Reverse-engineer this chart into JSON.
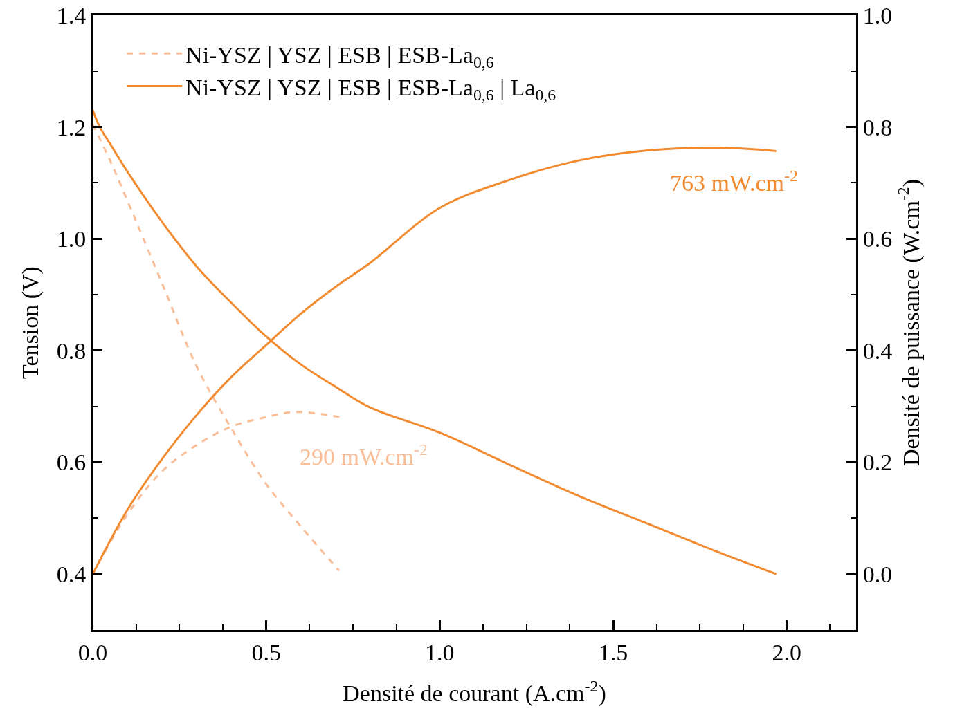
{
  "chart_data": {
    "type": "line",
    "xlabel": "Densité de courant (A.cm$^{-2}$)",
    "ylabel": "Tension (V)",
    "y2label": "Densité de puissance (W.cm$^{-2}$)",
    "xlim": [
      0,
      2.2
    ],
    "xticks": [
      {
        "value": 0,
        "label": "0.0"
      },
      0.5,
      {
        "value": 1,
        "label": "1.0"
      },
      1.5,
      {
        "value": 2,
        "label": "2.0"
      }
    ],
    "ylim": [
      0.3,
      1.4
    ],
    "yticks": [
      0.4,
      0.6,
      0.8,
      {
        "value": 1,
        "label": "1.0"
      },
      1.2,
      1.4
    ],
    "y2lim": [
      -0.1,
      1.0
    ],
    "y2ticks": [
      {
        "value": 0,
        "label": "0.0"
      },
      0.2,
      0.4,
      0.6,
      0.8,
      {
        "value": 1,
        "label": "1.0"
      }
    ],
    "grid": false,
    "legend": "top left",
    "marker": "none",
    "series": [
      {
        "name": "Ni-YSZ | YSZ | ESB | ESB-La$_{0,6}$",
        "color": "#f9be98",
        "line_style": "dashed",
        "x": [
          0,
          0.05,
          0.1,
          0.2,
          0.3,
          0.4,
          0.5,
          0.6,
          0.71
        ],
        "values": [
          1.205,
          1.14,
          1.068,
          0.92,
          0.771,
          0.66,
          0.561,
          0.485,
          0.406
        ]
      },
      {
        "color": "#f9be98",
        "line_style": "dashed",
        "axis": "y2",
        "x": [
          0,
          0.1,
          0.2,
          0.3,
          0.4,
          0.5,
          0.58,
          0.65,
          0.72
        ],
        "values": [
          0,
          0.107,
          0.184,
          0.231,
          0.264,
          0.281,
          0.29,
          0.287,
          0.28
        ]
      },
      {
        "name": "Ni-YSZ | YSZ | ESB | ESB-La$_{0,6}$ | La$_{0,6}$",
        "color": "#f28a30",
        "line_style": "solid",
        "x": [
          0,
          0.02,
          0.05,
          0.1,
          0.2,
          0.3,
          0.4,
          0.5,
          0.6,
          0.7,
          0.8,
          1.0,
          1.2,
          1.4,
          1.6,
          1.8,
          1.97
        ],
        "values": [
          1.23,
          1.2,
          1.17,
          1.12,
          1.03,
          0.95,
          0.885,
          0.825,
          0.775,
          0.735,
          0.698,
          0.653,
          0.596,
          0.54,
          0.49,
          0.44,
          0.4
        ]
      },
      {
        "color": "#f28a30",
        "line_style": "solid",
        "axis": "y2",
        "x": [
          0,
          0.1,
          0.2,
          0.3,
          0.4,
          0.5,
          0.6,
          0.7,
          0.8,
          1.0,
          1.2,
          1.4,
          1.6,
          1.8,
          1.97
        ],
        "values": [
          0,
          0.115,
          0.206,
          0.285,
          0.353,
          0.41,
          0.466,
          0.514,
          0.557,
          0.655,
          0.705,
          0.74,
          0.758,
          0.763,
          0.757
        ]
      }
    ],
    "annotations": [
      "290 mW.cm$^{-2}$",
      "763 mW.cm$^{-2}$"
    ]
  }
}
